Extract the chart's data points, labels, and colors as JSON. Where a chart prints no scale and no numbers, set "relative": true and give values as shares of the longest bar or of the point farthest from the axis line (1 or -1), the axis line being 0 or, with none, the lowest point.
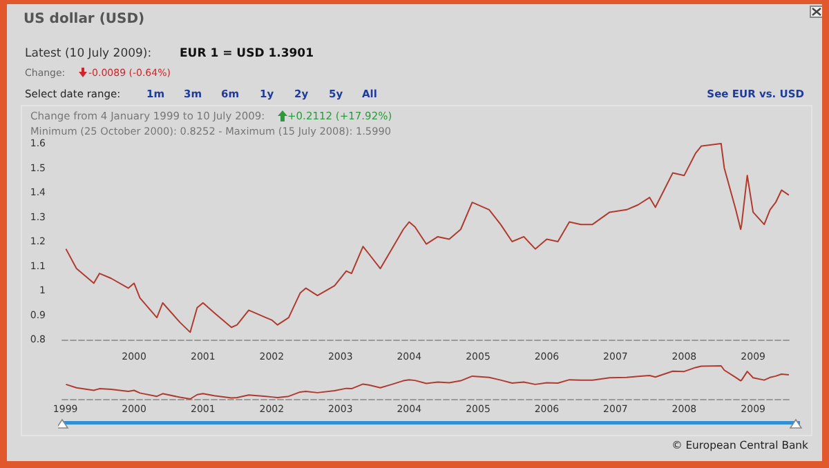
{
  "chart_data": [
    {
      "type": "line",
      "title": "US dollar (USD)",
      "annotations": [
        "Latest (10 July 2009):",
        "EUR 1 = USD 1.3901",
        "Change:",
        "-0.0089 (-0.64%)",
        "Select date range:",
        "1m",
        "3m",
        "6m",
        "1y",
        "2y",
        "5y",
        "All",
        "See EUR vs. USD",
        "Change from 4 January 1999 to 10 July 2009:",
        "+0.2112 (+17.92%)",
        "Minimum (25 October 2000): 0.8252 - Maximum (15 July 2008): 1.5990",
        "© European Central Bank"
      ],
      "x": [
        "1999-01-04",
        "1999-03",
        "1999-06",
        "1999-07",
        "1999-09",
        "1999-12",
        "2000-01",
        "2000-02",
        "2000-05",
        "2000-06",
        "2000-09",
        "2000-10-25",
        "2000-12",
        "2001-01",
        "2001-03",
        "2001-06",
        "2001-07",
        "2001-09",
        "2001-12",
        "2002-01",
        "2002-02",
        "2002-04",
        "2002-06",
        "2002-07",
        "2002-09",
        "2002-12",
        "2003-02",
        "2003-03",
        "2003-05",
        "2003-06",
        "2003-08",
        "2003-10",
        "2003-12",
        "2004-01",
        "2004-02",
        "2004-04",
        "2004-06",
        "2004-08",
        "2004-10",
        "2004-12",
        "2005-03",
        "2005-05",
        "2005-07",
        "2005-09",
        "2005-11",
        "2006-01",
        "2006-03",
        "2006-05",
        "2006-07",
        "2006-09",
        "2006-12",
        "2007-03",
        "2007-05",
        "2007-07",
        "2007-08",
        "2007-11",
        "2008-01",
        "2008-03",
        "2008-04",
        "2008-07-15",
        "2008-08",
        "2008-10",
        "2008-10-27",
        "2008-11",
        "2008-12",
        "2009-01",
        "2009-03",
        "2009-04",
        "2009-05",
        "2009-06",
        "2009-07-10"
      ],
      "values": [
        1.17,
        1.09,
        1.03,
        1.07,
        1.05,
        1.01,
        1.03,
        0.97,
        0.89,
        0.95,
        0.87,
        0.83,
        0.93,
        0.95,
        0.91,
        0.85,
        0.86,
        0.92,
        0.89,
        0.88,
        0.86,
        0.89,
        0.99,
        1.01,
        0.98,
        1.02,
        1.08,
        1.07,
        1.18,
        1.15,
        1.09,
        1.17,
        1.25,
        1.28,
        1.26,
        1.19,
        1.22,
        1.21,
        1.25,
        1.36,
        1.33,
        1.27,
        1.2,
        1.22,
        1.17,
        1.21,
        1.2,
        1.28,
        1.27,
        1.27,
        1.32,
        1.33,
        1.35,
        1.38,
        1.34,
        1.48,
        1.47,
        1.56,
        1.59,
        1.6,
        1.5,
        1.33,
        1.25,
        1.27,
        1.47,
        1.32,
        1.27,
        1.33,
        1.36,
        1.41,
        1.39
      ],
      "color": "#b03a2e",
      "xlim": [
        "1998-12-15",
        "2009-07-25"
      ],
      "xticks": [
        "2000",
        "2001",
        "2002",
        "2003",
        "2004",
        "2005",
        "2006",
        "2007",
        "2008",
        "2009"
      ],
      "ylim": [
        0.8,
        1.6
      ],
      "yticks": [
        0.8,
        0.9,
        1,
        1.1,
        1.2,
        1.3,
        1.4,
        1.5,
        1.6
      ]
    },
    {
      "type": "line",
      "x": [
        "1999-01-04",
        "1999-03",
        "1999-06",
        "1999-07",
        "1999-09",
        "1999-12",
        "2000-01",
        "2000-02",
        "2000-05",
        "2000-06",
        "2000-09",
        "2000-10-25",
        "2000-12",
        "2001-01",
        "2001-03",
        "2001-06",
        "2001-07",
        "2001-09",
        "2001-12",
        "2002-01",
        "2002-02",
        "2002-04",
        "2002-06",
        "2002-07",
        "2002-09",
        "2002-12",
        "2003-02",
        "2003-03",
        "2003-05",
        "2003-06",
        "2003-08",
        "2003-10",
        "2003-12",
        "2004-01",
        "2004-02",
        "2004-04",
        "2004-06",
        "2004-08",
        "2004-10",
        "2004-12",
        "2005-03",
        "2005-05",
        "2005-07",
        "2005-09",
        "2005-11",
        "2006-01",
        "2006-03",
        "2006-05",
        "2006-07",
        "2006-09",
        "2006-12",
        "2007-03",
        "2007-05",
        "2007-07",
        "2007-08",
        "2007-11",
        "2008-01",
        "2008-03",
        "2008-04",
        "2008-07-15",
        "2008-08",
        "2008-10",
        "2008-10-27",
        "2008-11",
        "2008-12",
        "2009-01",
        "2009-03",
        "2009-04",
        "2009-05",
        "2009-06",
        "2009-07-10"
      ],
      "values": [
        0.44,
        0.34,
        0.26,
        0.31,
        0.29,
        0.23,
        0.26,
        0.18,
        0.08,
        0.16,
        0.05,
        0,
        0.13,
        0.16,
        0.1,
        0.03,
        0.04,
        0.12,
        0.08,
        0.06,
        0.04,
        0.08,
        0.21,
        0.23,
        0.19,
        0.25,
        0.32,
        0.31,
        0.45,
        0.42,
        0.34,
        0.44,
        0.55,
        0.58,
        0.56,
        0.47,
        0.51,
        0.49,
        0.55,
        0.69,
        0.65,
        0.57,
        0.48,
        0.51,
        0.44,
        0.49,
        0.48,
        0.58,
        0.57,
        0.57,
        0.64,
        0.65,
        0.68,
        0.71,
        0.66,
        0.84,
        0.83,
        0.95,
        0.99,
        1,
        0.87,
        0.65,
        0.55,
        0.57,
        0.83,
        0.64,
        0.57,
        0.65,
        0.69,
        0.75,
        0.73
      ],
      "relative": true,
      "color": "#b03a2e",
      "xlim": [
        "1998-12-15",
        "2009-07-25"
      ],
      "xticks": [
        "1999",
        "2000",
        "2001",
        "2002",
        "2003",
        "2004",
        "2005",
        "2006",
        "2007",
        "2008",
        "2009"
      ],
      "tick_labels": "x"
    }
  ]
}
